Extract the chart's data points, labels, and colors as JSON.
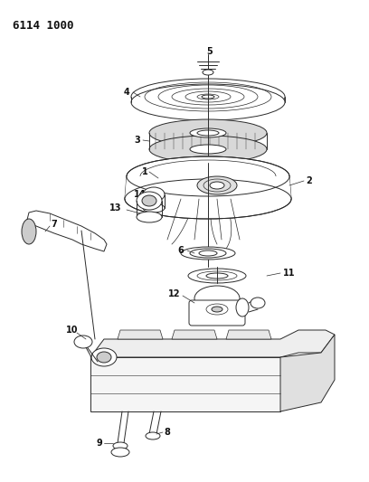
{
  "title": "6114 1000",
  "bg": "#ffffff",
  "lc": "#2a2a2a",
  "lw": 0.7,
  "fig_w": 4.08,
  "fig_h": 5.33,
  "dpi": 100
}
